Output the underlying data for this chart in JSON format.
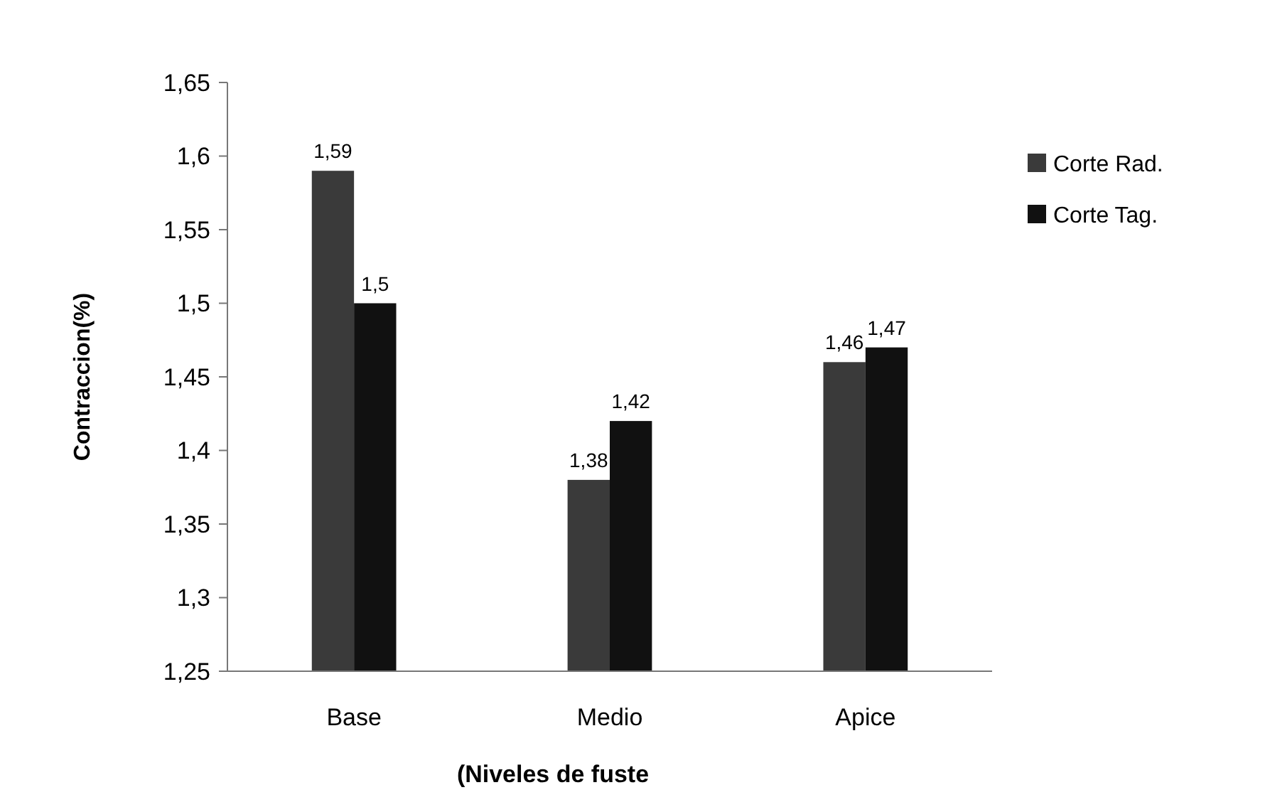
{
  "chart_data": {
    "type": "bar",
    "xlabel": "(Niveles de fuste",
    "ylabel": "Contraccion(%)",
    "categories": [
      "Base",
      "Medio",
      "Apice"
    ],
    "series": [
      {
        "name": "Corte Rad.",
        "color": "#3a3a3a",
        "values": [
          1.59,
          1.38,
          1.46
        ],
        "value_labels": [
          "1,59",
          "1,38",
          "1,46"
        ]
      },
      {
        "name": "Corte Tag.",
        "color": "#111111",
        "values": [
          1.5,
          1.42,
          1.47
        ],
        "value_labels": [
          "1,5",
          "1,42",
          "1,47"
        ]
      }
    ],
    "ylim": [
      1.25,
      1.65
    ],
    "yticks": [
      {
        "value": 1.25,
        "label": "1,25"
      },
      {
        "value": 1.3,
        "label": "1,3"
      },
      {
        "value": 1.35,
        "label": "1,35"
      },
      {
        "value": 1.4,
        "label": "1,4"
      },
      {
        "value": 1.45,
        "label": "1,45"
      },
      {
        "value": 1.5,
        "label": "1,5"
      },
      {
        "value": 1.55,
        "label": "1,55"
      },
      {
        "value": 1.6,
        "label": "1,6"
      },
      {
        "value": 1.65,
        "label": "1,65"
      }
    ],
    "grid": false,
    "legend": "right"
  }
}
